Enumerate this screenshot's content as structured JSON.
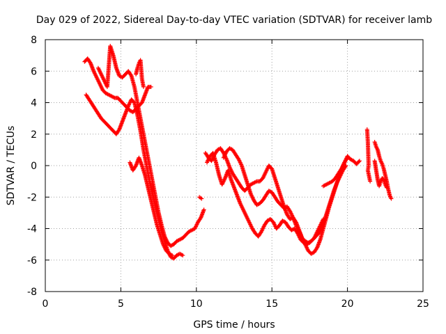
{
  "chart_data": {
    "type": "scatter",
    "title": "Day 029 of 2022, Sidereal Day-to-day VTEC variation (SDTVAR) for receiver lamb",
    "xlabel": "GPS time / hours",
    "ylabel": "SDTVAR / TECUs",
    "xlim": [
      0,
      25
    ],
    "ylim": [
      -8,
      8
    ],
    "xticks": [
      0,
      5,
      10,
      15,
      20,
      25
    ],
    "yticks": [
      -8,
      -6,
      -4,
      -2,
      0,
      2,
      4,
      6,
      8
    ],
    "grid": true,
    "marker": "+",
    "color": "#ff0000",
    "series": [
      {
        "values": [
          [
            2.6,
            6.6
          ],
          [
            2.8,
            6.8
          ],
          [
            3.0,
            6.5
          ],
          [
            3.2,
            6.0
          ],
          [
            3.4,
            5.6
          ],
          [
            3.6,
            5.2
          ],
          [
            3.8,
            4.8
          ],
          [
            4.0,
            4.6
          ],
          [
            4.2,
            4.5
          ],
          [
            4.4,
            4.4
          ],
          [
            4.6,
            4.3
          ],
          [
            4.8,
            4.3
          ],
          [
            5.0,
            4.1
          ],
          [
            5.2,
            3.9
          ],
          [
            5.4,
            3.7
          ],
          [
            5.6,
            3.5
          ],
          [
            5.8,
            3.4
          ],
          [
            6.0,
            3.6
          ],
          [
            6.2,
            3.8
          ],
          [
            6.4,
            4.0
          ],
          [
            6.6,
            4.5
          ],
          [
            6.8,
            5.0
          ],
          [
            7.0,
            5.0
          ]
        ]
      },
      {
        "values": [
          [
            2.7,
            4.5
          ],
          [
            2.9,
            4.2
          ],
          [
            3.1,
            3.9
          ],
          [
            3.3,
            3.6
          ],
          [
            3.5,
            3.3
          ],
          [
            3.7,
            3.0
          ],
          [
            3.9,
            2.8
          ],
          [
            4.1,
            2.6
          ],
          [
            4.3,
            2.4
          ],
          [
            4.5,
            2.2
          ],
          [
            4.7,
            2.0
          ],
          [
            4.9,
            2.3
          ],
          [
            5.1,
            2.8
          ],
          [
            5.3,
            3.3
          ],
          [
            5.5,
            3.8
          ],
          [
            5.7,
            4.2
          ],
          [
            5.9,
            4.0
          ],
          [
            6.1,
            3.2
          ],
          [
            6.3,
            2.2
          ],
          [
            6.5,
            1.0
          ],
          [
            6.7,
            0.0
          ],
          [
            6.9,
            -1.0
          ],
          [
            7.1,
            -1.8
          ],
          [
            7.3,
            -2.6
          ],
          [
            7.5,
            -3.4
          ],
          [
            7.7,
            -4.2
          ],
          [
            7.9,
            -4.8
          ],
          [
            8.1,
            -5.4
          ],
          [
            8.3,
            -5.8
          ],
          [
            8.5,
            -5.9
          ],
          [
            8.7,
            -5.7
          ],
          [
            8.9,
            -5.6
          ],
          [
            9.1,
            -5.7
          ]
        ]
      },
      {
        "values": [
          [
            3.5,
            6.2
          ],
          [
            3.7,
            5.8
          ],
          [
            3.9,
            5.4
          ],
          [
            4.1,
            5.0
          ],
          [
            4.3,
            7.6
          ],
          [
            4.5,
            7.0
          ],
          [
            4.7,
            6.2
          ],
          [
            4.9,
            5.7
          ],
          [
            5.1,
            5.6
          ],
          [
            5.3,
            5.8
          ],
          [
            5.5,
            6.0
          ],
          [
            5.7,
            5.7
          ],
          [
            5.9,
            5.0
          ],
          [
            6.1,
            4.0
          ],
          [
            6.3,
            3.0
          ],
          [
            6.5,
            2.0
          ],
          [
            6.7,
            1.0
          ],
          [
            6.9,
            0.0
          ],
          [
            7.1,
            -1.0
          ],
          [
            7.3,
            -2.0
          ],
          [
            7.5,
            -3.0
          ],
          [
            7.7,
            -3.8
          ],
          [
            7.9,
            -4.5
          ],
          [
            8.1,
            -4.9
          ],
          [
            8.3,
            -5.1
          ],
          [
            8.5,
            -5.0
          ],
          [
            8.7,
            -4.8
          ],
          [
            8.9,
            -4.7
          ],
          [
            9.1,
            -4.6
          ],
          [
            9.3,
            -4.4
          ],
          [
            9.5,
            -4.2
          ],
          [
            9.7,
            -4.1
          ],
          [
            9.9,
            -4.0
          ],
          [
            10.1,
            -3.6
          ],
          [
            10.3,
            -3.3
          ],
          [
            10.5,
            -2.8
          ]
        ]
      },
      {
        "values": [
          [
            5.6,
            0.2
          ],
          [
            5.8,
            -0.3
          ],
          [
            6.0,
            0.0
          ],
          [
            6.2,
            0.5
          ],
          [
            6.4,
            0.0
          ],
          [
            6.6,
            -0.6
          ],
          [
            6.8,
            -1.4
          ],
          [
            7.0,
            -2.2
          ],
          [
            7.2,
            -3.0
          ],
          [
            7.4,
            -3.8
          ],
          [
            7.6,
            -4.4
          ],
          [
            7.8,
            -5.0
          ],
          [
            8.0,
            -5.4
          ],
          [
            8.2,
            -5.6
          ],
          [
            8.4,
            -5.7
          ]
        ]
      },
      {
        "values": [
          [
            6.0,
            5.8
          ],
          [
            6.1,
            6.2
          ],
          [
            6.2,
            6.5
          ],
          [
            6.3,
            6.7
          ],
          [
            6.4,
            5.5
          ],
          [
            6.5,
            5.0
          ]
        ]
      },
      {
        "values": [
          [
            10.2,
            -2.0
          ],
          [
            10.35,
            -2.1
          ]
        ]
      },
      {
        "values": [
          [
            10.6,
            0.8
          ],
          [
            10.8,
            0.5
          ],
          [
            11.0,
            0.3
          ],
          [
            11.2,
            0.7
          ],
          [
            11.4,
            1.0
          ],
          [
            11.6,
            1.1
          ],
          [
            11.8,
            0.8
          ],
          [
            12.0,
            0.4
          ],
          [
            12.2,
            -0.1
          ],
          [
            12.4,
            -0.5
          ],
          [
            12.6,
            -0.8
          ],
          [
            12.8,
            -1.1
          ],
          [
            13.0,
            -1.4
          ],
          [
            13.2,
            -1.6
          ],
          [
            13.4,
            -1.4
          ],
          [
            13.6,
            -1.2
          ],
          [
            13.8,
            -1.1
          ],
          [
            14.0,
            -1.0
          ],
          [
            14.2,
            -1.0
          ],
          [
            14.4,
            -0.8
          ],
          [
            14.6,
            -0.4
          ],
          [
            14.8,
            0.0
          ],
          [
            15.0,
            -0.2
          ],
          [
            15.2,
            -0.8
          ],
          [
            15.4,
            -1.4
          ],
          [
            15.6,
            -2.0
          ],
          [
            15.8,
            -2.6
          ],
          [
            16.0,
            -3.1
          ],
          [
            16.2,
            -3.4
          ],
          [
            16.4,
            -3.3
          ],
          [
            16.6,
            -3.6
          ],
          [
            16.8,
            -4.1
          ],
          [
            17.0,
            -4.6
          ],
          [
            17.2,
            -5.0
          ],
          [
            17.4,
            -5.4
          ],
          [
            17.6,
            -5.6
          ],
          [
            17.8,
            -5.5
          ],
          [
            18.0,
            -5.2
          ],
          [
            18.2,
            -4.7
          ],
          [
            18.4,
            -4.0
          ],
          [
            18.6,
            -3.3
          ],
          [
            18.8,
            -2.6
          ],
          [
            19.0,
            -2.0
          ],
          [
            19.2,
            -1.4
          ],
          [
            19.4,
            -0.8
          ],
          [
            19.6,
            -0.3
          ],
          [
            19.8,
            0.2
          ],
          [
            20.0,
            0.6
          ],
          [
            20.2,
            0.4
          ],
          [
            20.4,
            0.3
          ],
          [
            20.6,
            0.1
          ],
          [
            20.8,
            0.3
          ]
        ]
      },
      {
        "values": [
          [
            10.7,
            0.2
          ],
          [
            10.9,
            0.6
          ],
          [
            11.1,
            0.8
          ],
          [
            11.3,
            0.2
          ],
          [
            11.5,
            -0.6
          ],
          [
            11.7,
            -1.2
          ],
          [
            11.9,
            -0.8
          ],
          [
            12.1,
            -0.3
          ],
          [
            12.3,
            -0.9
          ],
          [
            12.5,
            -1.4
          ],
          [
            12.7,
            -1.9
          ],
          [
            12.9,
            -2.4
          ],
          [
            13.1,
            -2.8
          ],
          [
            13.3,
            -3.2
          ],
          [
            13.5,
            -3.6
          ],
          [
            13.7,
            -4.0
          ],
          [
            13.9,
            -4.3
          ],
          [
            14.1,
            -4.5
          ],
          [
            14.3,
            -4.2
          ],
          [
            14.5,
            -3.8
          ],
          [
            14.7,
            -3.5
          ],
          [
            14.9,
            -3.4
          ],
          [
            15.1,
            -3.6
          ],
          [
            15.3,
            -4.0
          ],
          [
            15.5,
            -3.8
          ],
          [
            15.7,
            -3.5
          ],
          [
            15.9,
            -3.6
          ],
          [
            16.1,
            -3.9
          ],
          [
            16.3,
            -4.1
          ],
          [
            16.5,
            -4.0
          ],
          [
            16.7,
            -4.3
          ],
          [
            16.9,
            -4.7
          ],
          [
            17.1,
            -4.9
          ],
          [
            17.3,
            -5.0
          ],
          [
            17.5,
            -4.9
          ],
          [
            17.7,
            -4.7
          ],
          [
            17.9,
            -4.5
          ],
          [
            18.1,
            -4.3
          ],
          [
            18.3,
            -3.9
          ],
          [
            18.5,
            -3.4
          ],
          [
            18.7,
            -2.8
          ],
          [
            18.9,
            -2.2
          ],
          [
            19.1,
            -1.6
          ],
          [
            19.3,
            -1.1
          ],
          [
            19.5,
            -0.7
          ],
          [
            19.7,
            -0.3
          ],
          [
            19.9,
            0.0
          ]
        ]
      },
      {
        "values": [
          [
            11.8,
            0.5
          ],
          [
            12.0,
            0.9
          ],
          [
            12.2,
            1.1
          ],
          [
            12.4,
            1.0
          ],
          [
            12.6,
            0.7
          ],
          [
            12.8,
            0.4
          ],
          [
            13.0,
            0.0
          ],
          [
            13.2,
            -0.6
          ],
          [
            13.4,
            -1.2
          ],
          [
            13.6,
            -1.8
          ],
          [
            13.8,
            -2.2
          ],
          [
            14.0,
            -2.5
          ],
          [
            14.2,
            -2.4
          ],
          [
            14.4,
            -2.2
          ],
          [
            14.6,
            -1.9
          ],
          [
            14.8,
            -1.6
          ],
          [
            15.0,
            -1.7
          ],
          [
            15.2,
            -2.0
          ],
          [
            15.4,
            -2.3
          ],
          [
            15.6,
            -2.5
          ],
          [
            15.8,
            -2.7
          ],
          [
            16.0,
            -2.6
          ],
          [
            16.2,
            -2.9
          ],
          [
            16.4,
            -3.3
          ],
          [
            16.6,
            -3.8
          ],
          [
            16.8,
            -4.2
          ],
          [
            17.0,
            -4.6
          ],
          [
            17.2,
            -4.8
          ],
          [
            17.4,
            -4.9
          ],
          [
            17.6,
            -4.8
          ],
          [
            17.8,
            -4.6
          ],
          [
            18.0,
            -4.2
          ],
          [
            18.2,
            -3.8
          ],
          [
            18.4,
            -3.4
          ]
        ]
      },
      {
        "values": [
          [
            18.4,
            -1.3
          ],
          [
            18.6,
            -1.2
          ],
          [
            18.8,
            -1.1
          ],
          [
            19.0,
            -1.0
          ],
          [
            19.2,
            -0.8
          ],
          [
            19.4,
            -0.5
          ],
          [
            19.6,
            -0.2
          ],
          [
            19.8,
            0.2
          ],
          [
            20.0,
            0.5
          ]
        ]
      },
      {
        "values": [
          [
            21.3,
            2.3
          ],
          [
            21.35,
            1.5
          ],
          [
            21.4,
            0.0
          ],
          [
            21.35,
            -0.3
          ],
          [
            21.5,
            -1.0
          ]
        ]
      },
      {
        "values": [
          [
            21.8,
            1.5
          ],
          [
            21.9,
            1.2
          ],
          [
            22.0,
            1.0
          ],
          [
            22.1,
            0.6
          ],
          [
            22.2,
            0.3
          ],
          [
            22.3,
            0.1
          ],
          [
            22.4,
            -0.2
          ],
          [
            22.5,
            -0.6
          ],
          [
            22.6,
            -1.0
          ],
          [
            22.7,
            -1.5
          ],
          [
            22.8,
            -1.9
          ],
          [
            22.9,
            -2.1
          ]
        ]
      },
      {
        "values": [
          [
            21.8,
            0.3
          ],
          [
            21.9,
            -0.3
          ],
          [
            22.0,
            -0.9
          ],
          [
            22.1,
            -1.3
          ],
          [
            22.2,
            -1.0
          ],
          [
            22.3,
            -0.8
          ],
          [
            22.4,
            -0.9
          ],
          [
            22.5,
            -1.2
          ],
          [
            22.6,
            -1.4
          ]
        ]
      }
    ]
  }
}
